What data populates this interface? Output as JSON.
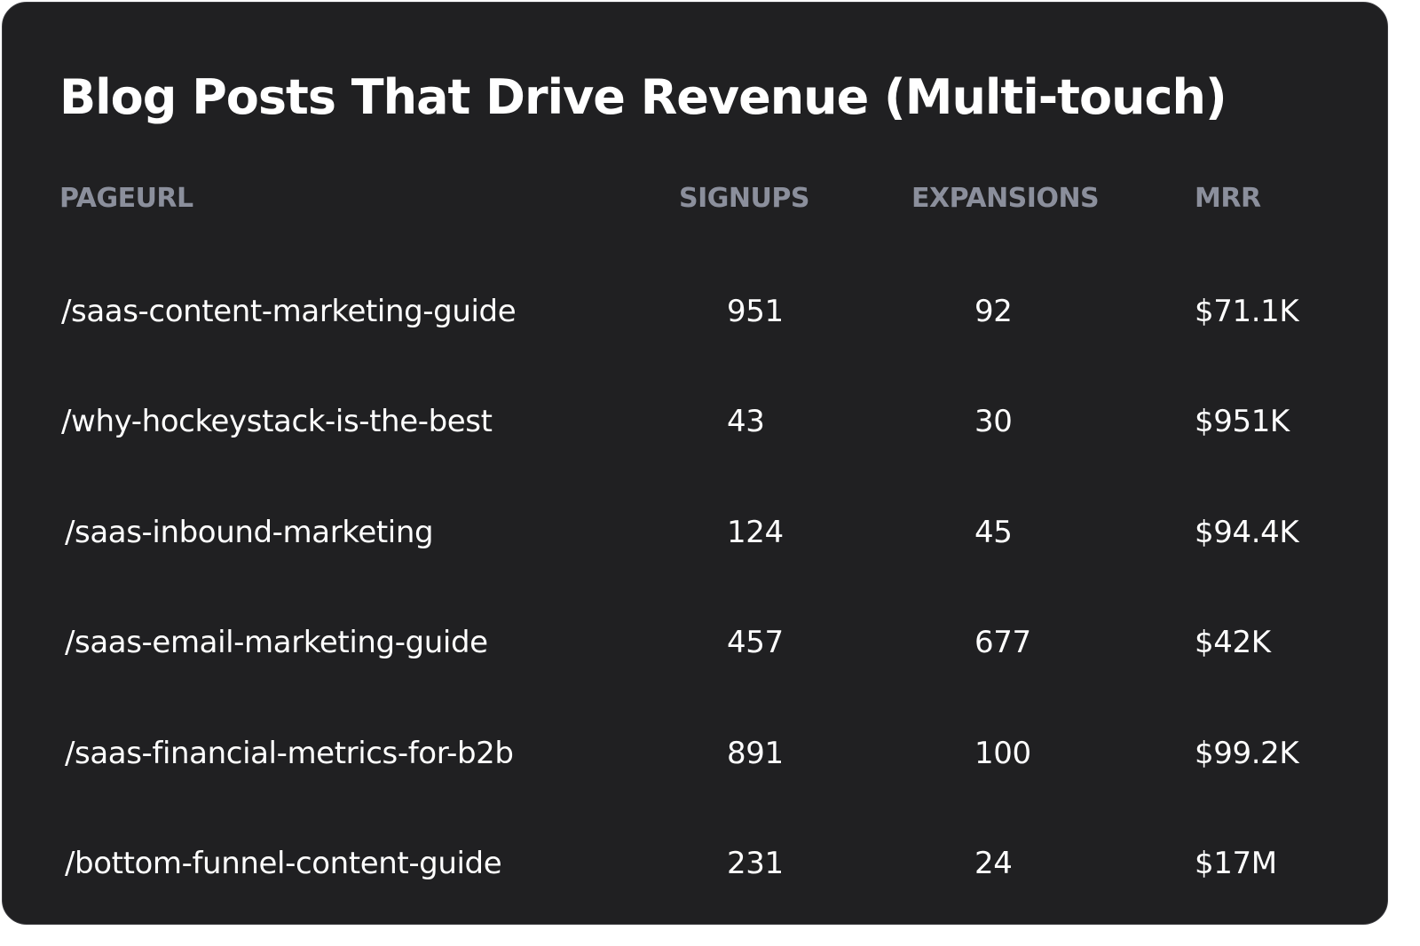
{
  "title": "Blog Posts That Drive Revenue (Multi-touch)",
  "columns": {
    "page_url": "PAGEURL",
    "signups": "SIGNUPS",
    "expansions": "EXPANSIONS",
    "mrr": "MRR"
  },
  "rows": [
    {
      "page_url": "/saas-content-marketing-guide",
      "signups": "951",
      "expansions": "92",
      "mrr": "$71.1K"
    },
    {
      "page_url": "/why-hockeystack-is-the-best",
      "signups": "43",
      "expansions": "30",
      "mrr": "$951K"
    },
    {
      "page_url": "/saas-inbound-marketing",
      "signups": "124",
      "expansions": "45",
      "mrr": "$94.4K"
    },
    {
      "page_url": "/saas-email-marketing-guide",
      "signups": "457",
      "expansions": "677",
      "mrr": "$42K"
    },
    {
      "page_url": "/saas-financial-metrics-for-b2b",
      "signups": "891",
      "expansions": "100",
      "mrr": "$99.2K"
    },
    {
      "page_url": "/bottom-funnel-content-guide",
      "signups": "231",
      "expansions": "24",
      "mrr": "$17M"
    }
  ],
  "colors": {
    "card_background": "#202022",
    "header_text": "#8b8f9c",
    "body_text": "#ffffff"
  }
}
